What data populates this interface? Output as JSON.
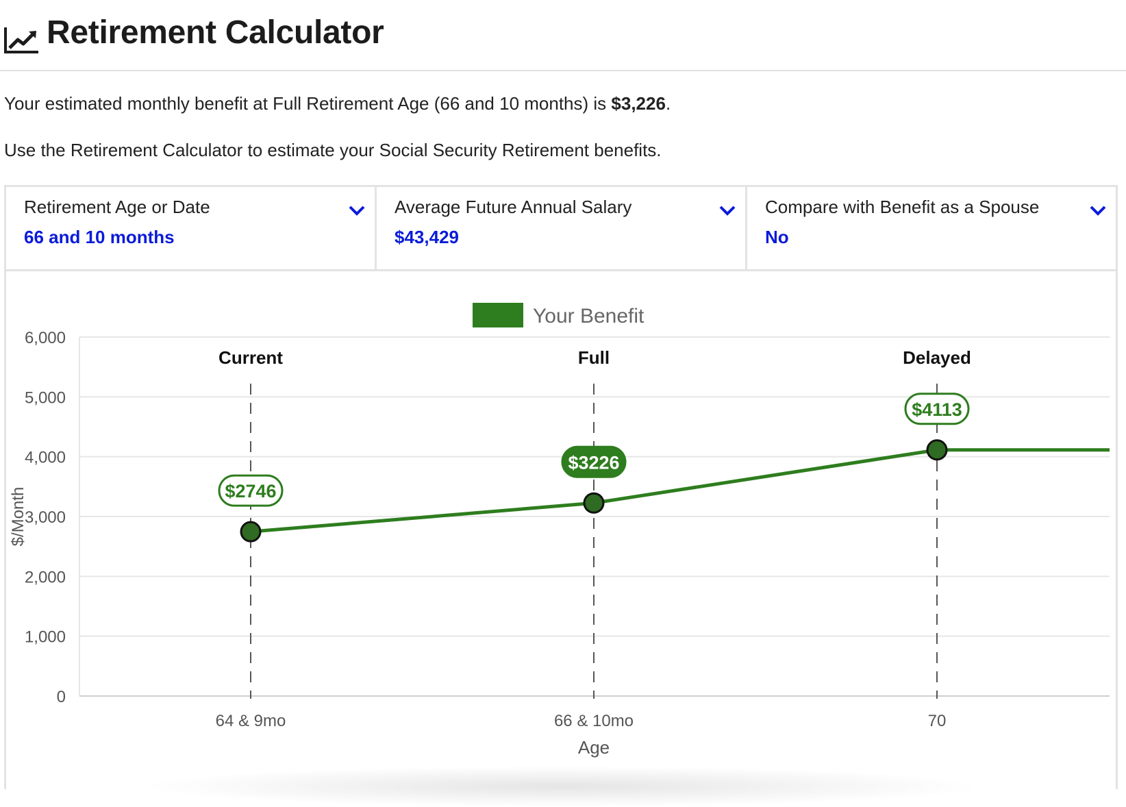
{
  "header": {
    "title": "Retirement Calculator",
    "icon": "chart-line-icon"
  },
  "intro": {
    "line1_prefix": "Your estimated monthly benefit at Full Retirement Age (66 and 10 months) is ",
    "line1_amount": "$3,226",
    "line1_suffix": ".",
    "line2": "Use the Retirement Calculator to estimate your Social Security Retirement benefits."
  },
  "controls": [
    {
      "label": "Retirement Age or Date",
      "value": "66 and 10 months"
    },
    {
      "label": "Average Future Annual Salary",
      "value": "$43,429"
    },
    {
      "label": "Compare with Benefit as a Spouse",
      "value": "No"
    }
  ],
  "colors": {
    "accent_blue": "#0a1bd9",
    "benefit_green": "#2e7d1e",
    "point_fill": "#2f6b22"
  },
  "chart_data": {
    "type": "line",
    "title": "",
    "xlabel": "Age",
    "ylabel": "$/Month",
    "ylim": [
      0,
      6000
    ],
    "yticks": [
      0,
      1000,
      2000,
      3000,
      4000,
      5000,
      6000
    ],
    "ytick_labels": [
      "0",
      "1,000",
      "2,000",
      "3,000",
      "4,000",
      "5,000",
      "6,000"
    ],
    "grid": true,
    "legend": {
      "position": "top-center",
      "entries": [
        "Your Benefit"
      ]
    },
    "categories": [
      "64 & 9mo",
      "66 & 10mo",
      "70"
    ],
    "markers": [
      "Current",
      "Full",
      "Delayed"
    ],
    "series": [
      {
        "name": "Your Benefit",
        "values": [
          2746,
          3226,
          4113
        ],
        "labels": [
          "$2746",
          "$3226",
          "$4113"
        ],
        "highlighted_label_index": 1,
        "extends_right_at_last_value": true
      }
    ]
  }
}
